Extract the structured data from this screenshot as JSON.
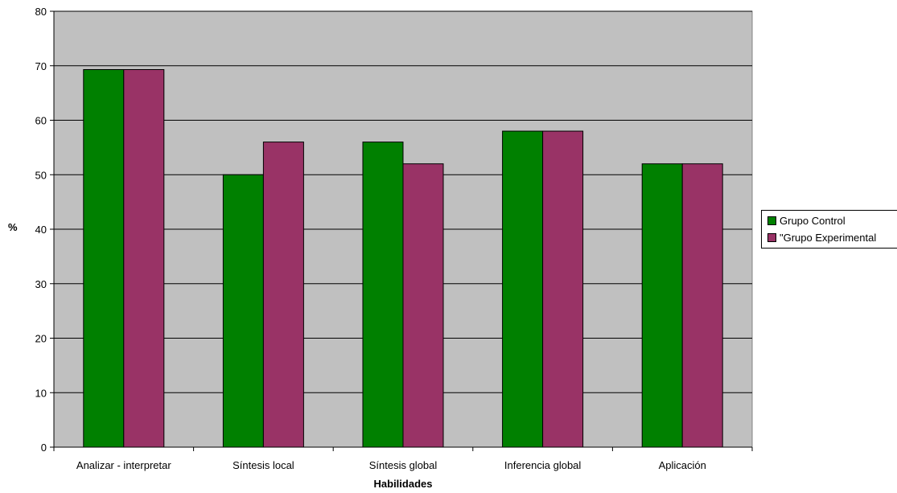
{
  "chart_data": {
    "type": "bar",
    "categories": [
      "Analizar - interpretar",
      "Síntesis local",
      "Síntesis global",
      "Inferencia global",
      "Aplicación"
    ],
    "series": [
      {
        "name": "Grupo Control",
        "values": [
          69.3,
          50,
          56,
          58,
          52
        ],
        "color": "#008000"
      },
      {
        "name": "\"Grupo  Experimental",
        "values": [
          69.3,
          56,
          52,
          58,
          52
        ],
        "color": "#993366"
      }
    ],
    "title": "",
    "xlabel": "Habilidades",
    "ylabel": "%",
    "ylim": [
      0,
      80
    ],
    "yticks": [
      0,
      10,
      20,
      30,
      40,
      50,
      60,
      70,
      80
    ],
    "ytick_labels": [
      "0",
      "10",
      "20",
      "30",
      "40",
      "50",
      "60",
      "70",
      "80"
    ],
    "grid": true,
    "plot_background": "#c0c0c0",
    "legend_position": "right"
  }
}
